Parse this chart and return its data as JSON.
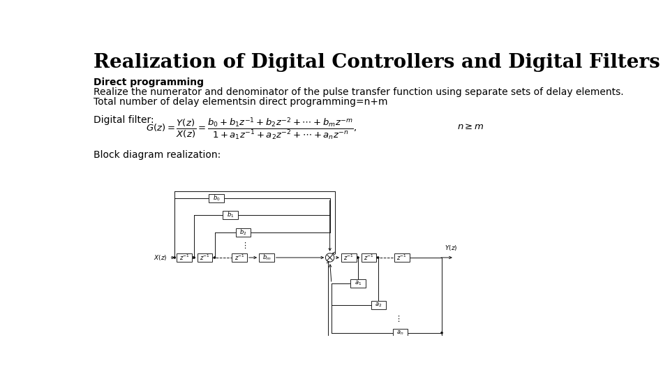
{
  "title": "Realization of Digital Controllers and Digital Filters",
  "subtitle": "Direct programming",
  "line1": "Realize the numerator and denominator of the pulse transfer function using separate sets of delay elements.",
  "line2": "Total number of delay elementsin direct programming=n+m",
  "digital_filter_label": "Digital filter:",
  "block_diagram_label": "Block diagram realization:",
  "bg_color": "#ffffff",
  "text_color": "#000000",
  "title_fontsize": 20,
  "body_fontsize": 10,
  "formula_fontsize": 9.5
}
